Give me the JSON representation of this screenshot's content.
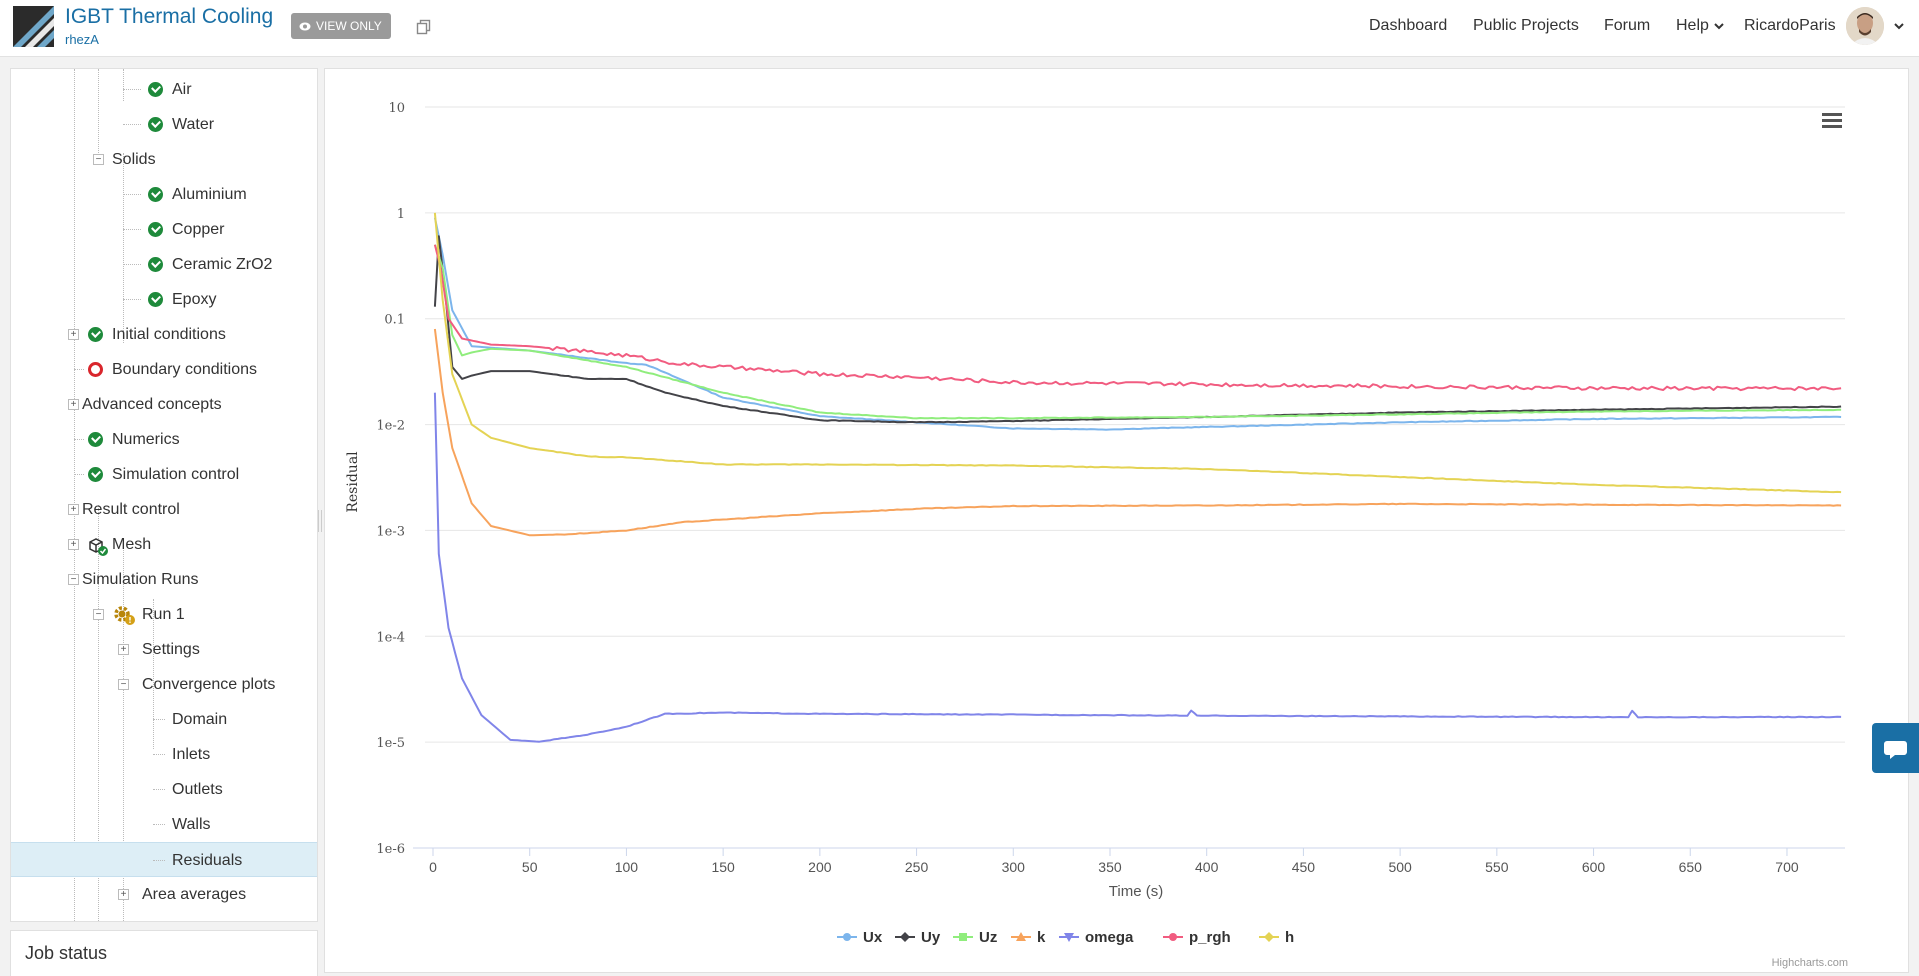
{
  "header": {
    "project_title": "IGBT Thermal Cooling",
    "owner": "rhezA",
    "view_only_label": "VIEW ONLY",
    "nav": {
      "dashboard": "Dashboard",
      "public_projects": "Public Projects",
      "forum": "Forum",
      "help": "Help",
      "username": "RicardoParis"
    }
  },
  "tree": {
    "air": "Air",
    "water": "Water",
    "solids": "Solids",
    "aluminium": "Aluminium",
    "copper": "Copper",
    "ceramic": "Ceramic ZrO2",
    "epoxy": "Epoxy",
    "initial_conditions": "Initial conditions",
    "boundary_conditions": "Boundary conditions",
    "advanced_concepts": "Advanced concepts",
    "numerics": "Numerics",
    "simulation_control": "Simulation control",
    "result_control": "Result control",
    "mesh": "Mesh",
    "simulation_runs": "Simulation Runs",
    "run1": "Run 1",
    "settings": "Settings",
    "convergence_plots": "Convergence plots",
    "domain": "Domain",
    "inlets": "Inlets",
    "outlets": "Outlets",
    "walls": "Walls",
    "residuals": "Residuals",
    "area_averages": "Area averages"
  },
  "job_status": "Job status",
  "credit": "Highcharts.com",
  "colors": {
    "Ux": "#7cb5ec",
    "Uy": "#434348",
    "Uz": "#90ed7d",
    "k": "#f7a35c",
    "omega": "#8085e9",
    "p_rgh": "#f15c80",
    "h": "#e4d354"
  },
  "chart_data": {
    "type": "line",
    "title": "",
    "xlabel": "Time (s)",
    "ylabel": "Residual",
    "xlim": [
      0,
      730
    ],
    "ylim": [
      1e-06,
      10
    ],
    "y_scale": "log",
    "x_ticks": [
      0,
      50,
      100,
      150,
      200,
      250,
      300,
      350,
      400,
      450,
      500,
      550,
      600,
      650,
      700
    ],
    "y_ticks": [
      "10",
      "1",
      "0.1",
      "1e-2",
      "1e-3",
      "1e-4",
      "1e-5",
      "1e-6"
    ],
    "legend_position": "bottom-center",
    "grid": true,
    "series": [
      {
        "name": "Ux",
        "x": [
          1,
          5,
          10,
          20,
          50,
          100,
          110,
          150,
          200,
          250,
          300,
          350,
          400,
          500,
          600,
          728
        ],
        "y": [
          0.9,
          0.4,
          0.12,
          0.055,
          0.05,
          0.038,
          0.037,
          0.018,
          0.012,
          0.0105,
          0.0092,
          0.009,
          0.0095,
          0.0105,
          0.0113,
          0.0118
        ]
      },
      {
        "name": "Uy",
        "x": [
          1,
          3,
          6,
          10,
          15,
          20,
          30,
          50,
          80,
          100,
          120,
          150,
          200,
          250,
          300,
          400,
          500,
          600,
          728
        ],
        "y": [
          0.13,
          0.6,
          0.2,
          0.035,
          0.027,
          0.029,
          0.032,
          0.032,
          0.027,
          0.027,
          0.02,
          0.015,
          0.011,
          0.0105,
          0.0108,
          0.0118,
          0.013,
          0.0138,
          0.0148
        ]
      },
      {
        "name": "Uz",
        "x": [
          1,
          5,
          10,
          15,
          20,
          30,
          50,
          100,
          150,
          200,
          250,
          300,
          400,
          500,
          600,
          728
        ],
        "y": [
          0.5,
          0.3,
          0.07,
          0.045,
          0.048,
          0.052,
          0.05,
          0.035,
          0.02,
          0.013,
          0.0115,
          0.0115,
          0.0118,
          0.0125,
          0.0133,
          0.0138
        ]
      },
      {
        "name": "k",
        "x": [
          1,
          5,
          10,
          20,
          30,
          50,
          70,
          100,
          130,
          200,
          250,
          300,
          400,
          500,
          600,
          728
        ],
        "y": [
          0.08,
          0.02,
          0.006,
          0.0018,
          0.0011,
          0.0009,
          0.00092,
          0.001,
          0.0012,
          0.00145,
          0.0016,
          0.0017,
          0.00172,
          0.00178,
          0.00175,
          0.00172
        ]
      },
      {
        "name": "omega",
        "x": [
          1,
          3,
          8,
          15,
          25,
          40,
          55,
          80,
          100,
          120,
          150,
          200,
          300,
          390,
          392,
          395,
          500,
          618,
          620,
          623,
          728
        ],
        "y": [
          0.02,
          0.0006,
          0.00012,
          4e-05,
          1.8e-05,
          1.05e-05,
          1.01e-05,
          1.18e-05,
          1.4e-05,
          1.85e-05,
          1.9e-05,
          1.85e-05,
          1.82e-05,
          1.78e-05,
          1.98e-05,
          1.78e-05,
          1.75e-05,
          1.72e-05,
          1.99e-05,
          1.72e-05,
          1.73e-05
        ]
      },
      {
        "name": "p_rgh",
        "x": [
          1,
          4,
          8,
          15,
          30,
          50,
          100,
          130,
          150,
          200,
          250,
          300,
          400,
          500,
          600,
          728
        ],
        "y": [
          0.5,
          0.3,
          0.1,
          0.065,
          0.057,
          0.055,
          0.045,
          0.037,
          0.035,
          0.03,
          0.028,
          0.025,
          0.024,
          0.023,
          0.022,
          0.022
        ]
      },
      {
        "name": "h",
        "x": [
          1,
          5,
          10,
          20,
          30,
          50,
          80,
          100,
          150,
          200,
          300,
          400,
          500,
          600,
          728
        ],
        "y": [
          1.0,
          0.15,
          0.03,
          0.01,
          0.0075,
          0.006,
          0.005,
          0.0049,
          0.0042,
          0.0042,
          0.0041,
          0.0038,
          0.0032,
          0.0027,
          0.0023
        ]
      }
    ]
  }
}
